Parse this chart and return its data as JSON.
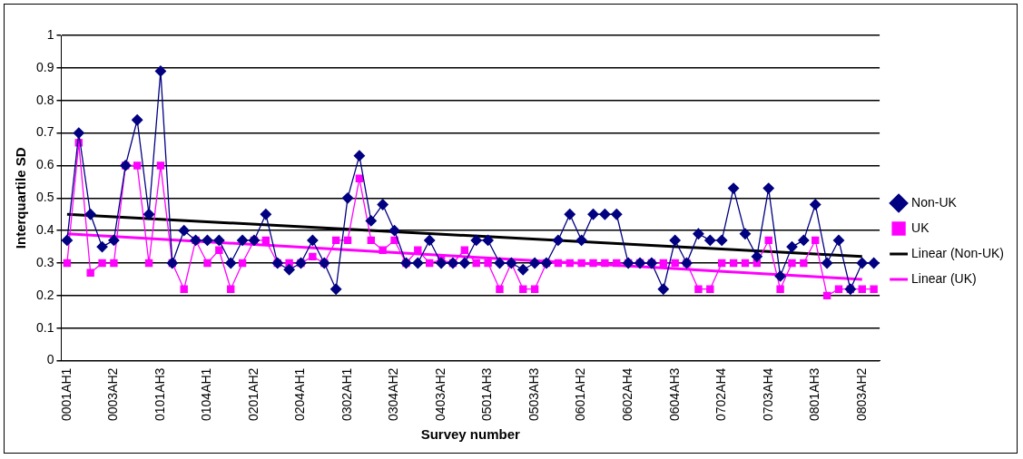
{
  "chart_data": {
    "type": "line",
    "xlabel": "Survey number",
    "ylabel": "Interquartile SD",
    "categories": [
      "0001AH1",
      null,
      null,
      null,
      "0003AH2",
      null,
      null,
      null,
      "0101AH3",
      null,
      null,
      null,
      "0104AH1",
      null,
      null,
      null,
      "0201AH2",
      null,
      null,
      null,
      "0204AH1",
      null,
      null,
      null,
      "0302AH1",
      null,
      null,
      null,
      "0304AH2",
      null,
      null,
      null,
      "0403AH2",
      null,
      null,
      null,
      "0501AH3",
      null,
      null,
      null,
      "0503AH3",
      null,
      null,
      null,
      "0601AH2",
      null,
      null,
      null,
      "0602AH4",
      null,
      null,
      null,
      "0604AH3",
      null,
      null,
      null,
      "0702AH4",
      null,
      null,
      null,
      "0703AH4",
      null,
      null,
      null,
      "0801AH3",
      null,
      null,
      null,
      "0803AH2",
      null
    ],
    "series": [
      {
        "name": "Non-UK",
        "color": "#000080",
        "marker": "diamond",
        "values": [
          0.37,
          0.7,
          0.45,
          0.35,
          0.37,
          0.6,
          0.74,
          0.45,
          0.89,
          0.3,
          0.4,
          0.37,
          0.37,
          0.37,
          0.3,
          0.37,
          0.37,
          0.45,
          0.3,
          0.28,
          0.3,
          0.37,
          0.3,
          0.22,
          0.5,
          0.63,
          0.43,
          0.48,
          0.4,
          0.3,
          0.3,
          0.37,
          0.3,
          0.3,
          0.3,
          0.37,
          0.37,
          0.3,
          0.3,
          0.28,
          0.3,
          0.3,
          0.37,
          0.45,
          0.37,
          0.45,
          0.45,
          0.45,
          0.3,
          0.3,
          0.3,
          0.22,
          0.37,
          0.3,
          0.39,
          0.37,
          0.37,
          0.53,
          0.39,
          0.32,
          0.53,
          0.26,
          0.35,
          0.37,
          0.48,
          0.3,
          0.37,
          0.22,
          0.3,
          0.3
        ]
      },
      {
        "name": "UK",
        "color": "#ff00ff",
        "marker": "square",
        "values": [
          0.3,
          0.67,
          0.27,
          0.3,
          0.3,
          0.6,
          0.6,
          0.3,
          0.6,
          0.3,
          0.22,
          0.37,
          0.3,
          0.34,
          0.22,
          0.3,
          0.37,
          0.37,
          0.3,
          0.3,
          0.3,
          0.32,
          0.3,
          0.37,
          0.37,
          0.56,
          0.37,
          0.34,
          0.37,
          0.3,
          0.34,
          0.3,
          0.31,
          0.3,
          0.34,
          0.3,
          0.3,
          0.22,
          0.3,
          0.22,
          0.22,
          0.3,
          0.3,
          0.3,
          0.3,
          0.3,
          0.3,
          0.3,
          0.3,
          0.3,
          0.3,
          0.3,
          0.3,
          0.3,
          0.22,
          0.22,
          0.3,
          0.3,
          0.3,
          0.3,
          0.37,
          0.22,
          0.3,
          0.3,
          0.37,
          0.2,
          0.22,
          0.22,
          0.22,
          0.22
        ]
      },
      {
        "name": "Linear (Non-UK)",
        "color": "#000000",
        "marker": "none",
        "x": [
          "0001AH1",
          "0803AH2"
        ],
        "values": [
          0.45,
          0.32
        ]
      },
      {
        "name": "Linear (UK)",
        "color": "#ff00ff",
        "marker": "none",
        "x": [
          "0001AH1",
          "0803AH2"
        ],
        "values": [
          0.39,
          0.25
        ]
      }
    ],
    "ylim": [
      0,
      1
    ],
    "yticks": [
      0,
      0.1,
      0.2,
      0.3,
      0.4,
      0.5,
      0.6,
      0.7,
      0.8,
      0.9,
      1
    ],
    "grid": "y",
    "legend": "right"
  }
}
